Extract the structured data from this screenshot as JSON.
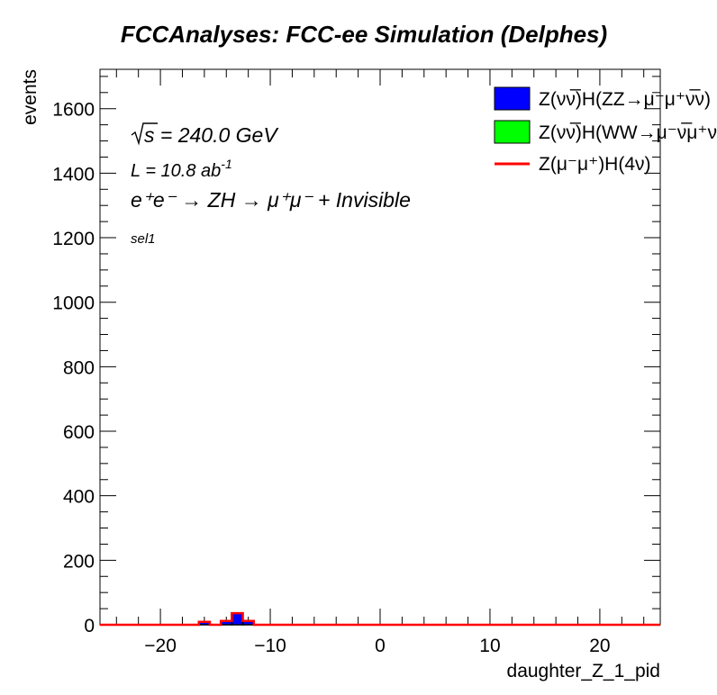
{
  "chart_data": {
    "type": "bar",
    "title": "FCCAnalyses: FCC-ee Simulation (Delphes)",
    "xlabel": "daughter_Z_1_pid",
    "ylabel": "events",
    "xlim": [
      -25.5,
      25.5
    ],
    "ylim": [
      0,
      1722
    ],
    "xticks": [
      -20,
      -10,
      0,
      10,
      20
    ],
    "yticks": [
      0,
      200,
      400,
      600,
      800,
      1000,
      1200,
      1400,
      1600
    ],
    "xtick_labels": [
      "−20",
      "−10",
      "0",
      "10",
      "20"
    ],
    "ytick_labels": [
      "0",
      "200",
      "400",
      "600",
      "800",
      "1000",
      "1200",
      "1400",
      "1600"
    ],
    "bin_width": 1,
    "series": [
      {
        "name": "Z(νν̅)H(ZZ→μ⁻μ⁺ν̅ν)",
        "color": "#0000ff",
        "style": "stacked-fill",
        "bins": [
          {
            "x": -16,
            "value": 9
          },
          {
            "x": -14,
            "value": 12
          },
          {
            "x": -13,
            "value": 36
          },
          {
            "x": -12,
            "value": 12
          }
        ]
      },
      {
        "name": "Z(νν̅)H(WW→μ⁻ν̅μ⁺ν)",
        "color": "#00ff00",
        "style": "stacked-fill",
        "bins": []
      },
      {
        "name": "Z(μ⁻μ⁺)H(4ν)",
        "color": "#ff0000",
        "style": "line",
        "bins": []
      }
    ],
    "annotations": {
      "sqrt_s": "s = 240.0 GeV",
      "lumi": "L = 10.8 ab",
      "lumi_exp": "-1",
      "process": "e⁺e⁻ → ZH → μ⁺μ⁻ + Invisible",
      "selection": "sel1"
    },
    "legend_placement": "top-right",
    "grid": false
  }
}
